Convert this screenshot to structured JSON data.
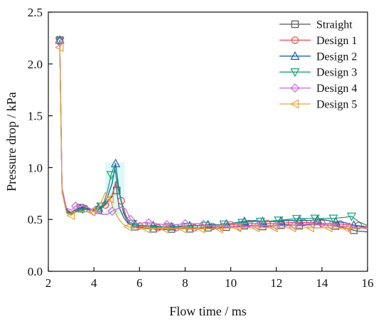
{
  "chart_data": {
    "type": "line",
    "xlabel": "Flow time / ms",
    "ylabel": "Pressure drop / kPa",
    "xlim": [
      2,
      16
    ],
    "ylim": [
      0,
      2.5
    ],
    "xticks": [
      2,
      4,
      6,
      8,
      10,
      12,
      14,
      16
    ],
    "yticks": [
      0.0,
      0.5,
      1.0,
      1.5,
      2.0,
      2.5
    ],
    "ytick_labels": [
      "0.0",
      "0.5",
      "1.0",
      "1.5",
      "2.0",
      "2.5"
    ],
    "grid": false,
    "legend_position": "top-right",
    "series": [
      {
        "name": "Straight",
        "color": "#555555",
        "marker": "square",
        "x": [
          2.5,
          2.6,
          2.8,
          3.0,
          3.2,
          3.5,
          3.8,
          4.1,
          4.4,
          4.6,
          4.8,
          4.95,
          5.1,
          5.3,
          5.5,
          5.8,
          6.2,
          6.6,
          7.0,
          7.5,
          8.0,
          8.5,
          9.0,
          9.5,
          10.0,
          10.5,
          11.0,
          11.5,
          12.0,
          12.5,
          13.0,
          13.5,
          14.0,
          14.5,
          15.0,
          15.5,
          16.0
        ],
        "y": [
          2.23,
          0.8,
          0.6,
          0.56,
          0.6,
          0.62,
          0.6,
          0.58,
          0.62,
          0.68,
          0.72,
          0.86,
          0.62,
          0.52,
          0.46,
          0.43,
          0.42,
          0.41,
          0.4,
          0.41,
          0.41,
          0.41,
          0.42,
          0.42,
          0.43,
          0.44,
          0.44,
          0.43,
          0.44,
          0.45,
          0.44,
          0.45,
          0.45,
          0.44,
          0.42,
          0.39,
          0.38
        ],
        "marker_x": [
          2.5,
          3.4,
          4.2,
          5.0,
          5.8,
          6.6,
          7.4,
          8.2,
          9.0,
          9.8,
          10.6,
          11.4,
          12.2,
          13.0,
          13.8,
          14.6,
          15.4
        ]
      },
      {
        "name": "Design 1",
        "color": "#e84a4a",
        "marker": "circle",
        "x": [
          2.5,
          2.6,
          2.8,
          3.0,
          3.2,
          3.5,
          3.8,
          4.1,
          4.4,
          4.6,
          4.8,
          5.0,
          5.2,
          5.4,
          5.6,
          5.9,
          6.3,
          6.7,
          7.1,
          7.6,
          8.1,
          8.6,
          9.1,
          9.6,
          10.1,
          10.6,
          11.1,
          11.6,
          12.1,
          12.6,
          13.1,
          13.6,
          14.1,
          14.6,
          15.1,
          15.6,
          16.0
        ],
        "y": [
          2.22,
          0.8,
          0.59,
          0.57,
          0.6,
          0.61,
          0.6,
          0.6,
          0.62,
          0.66,
          0.74,
          0.88,
          0.68,
          0.54,
          0.46,
          0.44,
          0.43,
          0.42,
          0.42,
          0.42,
          0.42,
          0.42,
          0.43,
          0.44,
          0.45,
          0.46,
          0.46,
          0.46,
          0.46,
          0.47,
          0.47,
          0.47,
          0.46,
          0.46,
          0.45,
          0.44,
          0.43
        ],
        "marker_x": [
          2.5,
          3.6,
          4.5,
          5.2,
          6.0,
          6.8,
          7.6,
          8.4,
          9.2,
          10.0,
          10.8,
          11.6,
          12.4,
          13.2,
          14.0,
          14.8,
          15.6
        ]
      },
      {
        "name": "Design 2",
        "color": "#1f5fae",
        "marker": "triangle-up",
        "x": [
          2.5,
          2.6,
          2.8,
          3.0,
          3.2,
          3.5,
          3.8,
          4.1,
          4.4,
          4.6,
          4.8,
          4.95,
          5.1,
          5.3,
          5.5,
          5.8,
          6.2,
          6.6,
          7.0,
          7.5,
          8.0,
          8.5,
          9.0,
          9.5,
          10.0,
          10.5,
          11.0,
          11.5,
          12.0,
          12.5,
          13.0,
          13.5,
          14.0,
          14.5,
          15.0,
          15.5,
          16.0
        ],
        "y": [
          2.23,
          0.78,
          0.58,
          0.56,
          0.59,
          0.61,
          0.6,
          0.6,
          0.63,
          0.72,
          0.85,
          1.04,
          0.78,
          0.56,
          0.47,
          0.45,
          0.44,
          0.44,
          0.43,
          0.43,
          0.44,
          0.44,
          0.45,
          0.45,
          0.46,
          0.48,
          0.49,
          0.48,
          0.48,
          0.49,
          0.49,
          0.49,
          0.5,
          0.48,
          0.47,
          0.44,
          0.42
        ],
        "marker_x": [
          2.5,
          3.4,
          4.2,
          4.95,
          5.8,
          6.6,
          7.4,
          8.2,
          9.0,
          9.8,
          10.6,
          11.4,
          12.2,
          13.0,
          13.8,
          14.6,
          15.4
        ]
      },
      {
        "name": "Design 3",
        "color": "#1aa374",
        "marker": "triangle-down",
        "x": [
          2.5,
          2.6,
          2.8,
          3.0,
          3.2,
          3.5,
          3.8,
          4.1,
          4.4,
          4.6,
          4.75,
          4.9,
          5.05,
          5.3,
          5.5,
          5.8,
          6.2,
          6.6,
          7.0,
          7.5,
          8.0,
          8.5,
          9.0,
          9.5,
          10.0,
          10.5,
          11.0,
          11.5,
          12.0,
          12.5,
          13.0,
          13.5,
          14.0,
          14.5,
          15.0,
          15.3,
          15.6,
          16.0
        ],
        "y": [
          2.22,
          0.77,
          0.57,
          0.55,
          0.58,
          0.6,
          0.59,
          0.6,
          0.64,
          0.78,
          0.93,
          1.02,
          0.8,
          0.58,
          0.48,
          0.45,
          0.44,
          0.43,
          0.43,
          0.43,
          0.43,
          0.44,
          0.44,
          0.45,
          0.46,
          0.47,
          0.48,
          0.48,
          0.49,
          0.5,
          0.51,
          0.51,
          0.51,
          0.51,
          0.52,
          0.53,
          0.48,
          0.44
        ],
        "marker_x": [
          2.5,
          3.5,
          4.3,
          4.75,
          5.7,
          6.5,
          7.3,
          8.1,
          8.9,
          9.7,
          10.5,
          11.3,
          12.1,
          12.9,
          13.7,
          14.5,
          15.3
        ]
      },
      {
        "name": "Design 4",
        "color": "#cc66e0",
        "marker": "diamond",
        "x": [
          2.5,
          2.6,
          2.8,
          3.0,
          3.2,
          3.5,
          3.8,
          4.1,
          4.4,
          4.6,
          4.8,
          5.0,
          5.2,
          5.4,
          5.6,
          5.9,
          6.3,
          6.7,
          7.1,
          7.6,
          8.1,
          8.6,
          9.1,
          9.6,
          10.1,
          10.6,
          11.1,
          11.6,
          12.1,
          12.6,
          13.1,
          13.6,
          14.1,
          14.6,
          15.1,
          15.6,
          16.0
        ],
        "y": [
          2.21,
          0.79,
          0.61,
          0.59,
          0.63,
          0.63,
          0.61,
          0.56,
          0.55,
          0.55,
          0.58,
          0.6,
          0.62,
          0.6,
          0.5,
          0.46,
          0.47,
          0.46,
          0.45,
          0.45,
          0.46,
          0.46,
          0.44,
          0.43,
          0.43,
          0.43,
          0.44,
          0.44,
          0.44,
          0.44,
          0.45,
          0.46,
          0.45,
          0.44,
          0.43,
          0.42,
          0.41
        ],
        "marker_x": [
          2.5,
          3.2,
          4.0,
          4.8,
          5.6,
          6.4,
          7.2,
          8.0,
          8.8,
          9.6,
          10.4,
          11.2,
          12.0,
          12.8,
          13.6,
          14.4,
          15.2
        ]
      },
      {
        "name": "Design 5",
        "color": "#e8a33a",
        "marker": "triangle-left",
        "x": [
          2.5,
          2.6,
          2.8,
          3.0,
          3.2,
          3.5,
          3.8,
          4.1,
          4.3,
          4.5,
          4.7,
          4.9,
          5.1,
          5.3,
          5.5,
          5.8,
          6.2,
          6.6,
          7.0,
          7.5,
          8.0,
          8.5,
          9.0,
          9.5,
          10.0,
          10.5,
          11.0,
          11.5,
          12.0,
          12.5,
          13.0,
          13.5,
          14.0,
          14.5,
          15.0,
          15.5,
          16.0
        ],
        "y": [
          2.16,
          0.76,
          0.56,
          0.54,
          0.57,
          0.58,
          0.57,
          0.58,
          0.66,
          0.76,
          0.7,
          0.58,
          0.5,
          0.45,
          0.43,
          0.42,
          0.41,
          0.41,
          0.41,
          0.41,
          0.41,
          0.41,
          0.41,
          0.41,
          0.42,
          0.42,
          0.42,
          0.42,
          0.42,
          0.42,
          0.42,
          0.42,
          0.42,
          0.42,
          0.41,
          0.42,
          0.42
        ],
        "marker_x": [
          2.5,
          3.0,
          3.9,
          4.7,
          5.5,
          6.3,
          7.1,
          7.9,
          8.7,
          9.5,
          10.3,
          11.1,
          11.9,
          12.7,
          13.5,
          14.3,
          15.1
        ]
      }
    ]
  }
}
